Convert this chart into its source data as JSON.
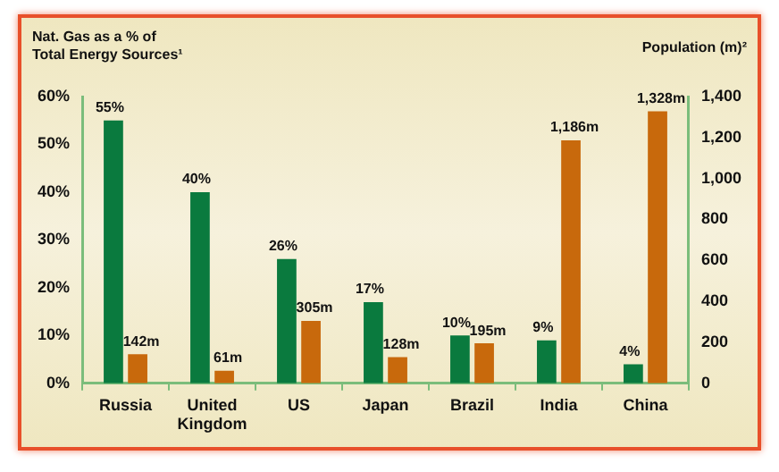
{
  "chart_data": {
    "type": "bar",
    "ylabel": "Nat. Gas as a % of Total Energy Sources¹",
    "y2label": "Population (m)²",
    "categories": [
      "Russia",
      "United Kingdom",
      "US",
      "Japan",
      "Brazil",
      "India",
      "China"
    ],
    "series": [
      {
        "color": "#0a7a3e",
        "values": [
          55,
          40,
          26,
          17,
          10,
          9,
          4
        ],
        "value_labels": [
          "55%",
          "40%",
          "26%",
          "17%",
          "10%",
          "9%",
          "4%"
        ]
      },
      {
        "axis": "y2",
        "color": "#c8690c",
        "values": [
          142,
          61,
          305,
          128,
          195,
          1186,
          1328
        ],
        "value_labels": [
          "142m",
          "61m",
          "305m",
          "128m",
          "195m",
          "1,186m",
          "1,328m"
        ]
      }
    ],
    "ylim": [
      0,
      60
    ],
    "yticks": [
      {
        "value": 0,
        "label": "0%"
      },
      {
        "value": 10,
        "label": "10%"
      },
      {
        "value": 20,
        "label": "20%"
      },
      {
        "value": 30,
        "label": "30%"
      },
      {
        "value": 40,
        "label": "40%"
      },
      {
        "value": 50,
        "label": "50%"
      },
      {
        "value": 60,
        "label": "60%"
      }
    ],
    "y2lim": [
      0,
      1400
    ],
    "y2ticks": [
      0,
      200,
      400,
      600,
      800,
      {
        "value": 1000,
        "label": "1,000"
      },
      {
        "value": 1200,
        "label": "1,200"
      },
      {
        "value": 1400,
        "label": "1,400"
      }
    ],
    "grid": false,
    "legend": false
  }
}
